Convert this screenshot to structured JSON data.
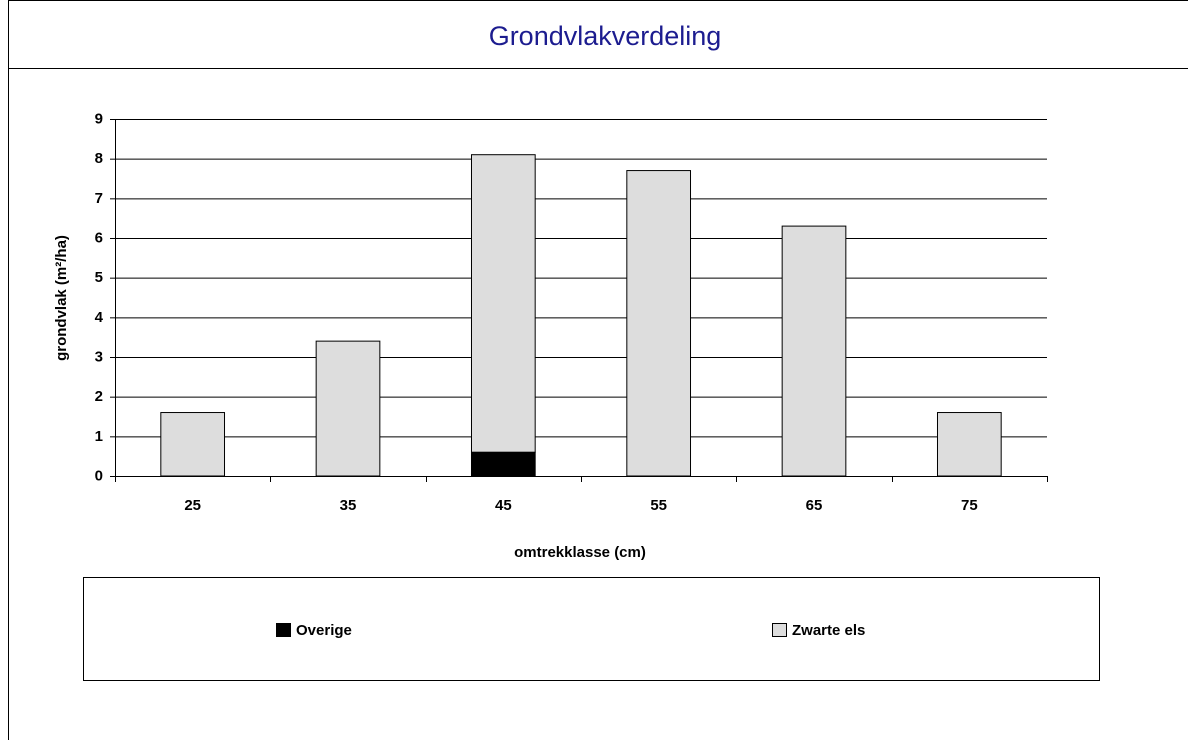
{
  "chart_data": {
    "type": "stacked_bar",
    "title": "Grondvlakverdeling",
    "x_label": "omtrekklasse (cm)",
    "y_label": "grondvlak (m²/ha)",
    "categories": [
      "25",
      "35",
      "45",
      "55",
      "65",
      "75"
    ],
    "series": [
      {
        "name": "Overige",
        "color": "#000000",
        "values": [
          0,
          0,
          0.6,
          0,
          0,
          0
        ]
      },
      {
        "name": "Zwarte els",
        "color": "#dddddd",
        "values": [
          1.6,
          3.4,
          7.5,
          7.7,
          6.3,
          1.6
        ]
      }
    ],
    "ylim": [
      0,
      9
    ],
    "yticks": [
      0,
      1,
      2,
      3,
      4,
      5,
      6,
      7,
      8,
      9
    ],
    "grid": true,
    "legend": "bottom"
  }
}
